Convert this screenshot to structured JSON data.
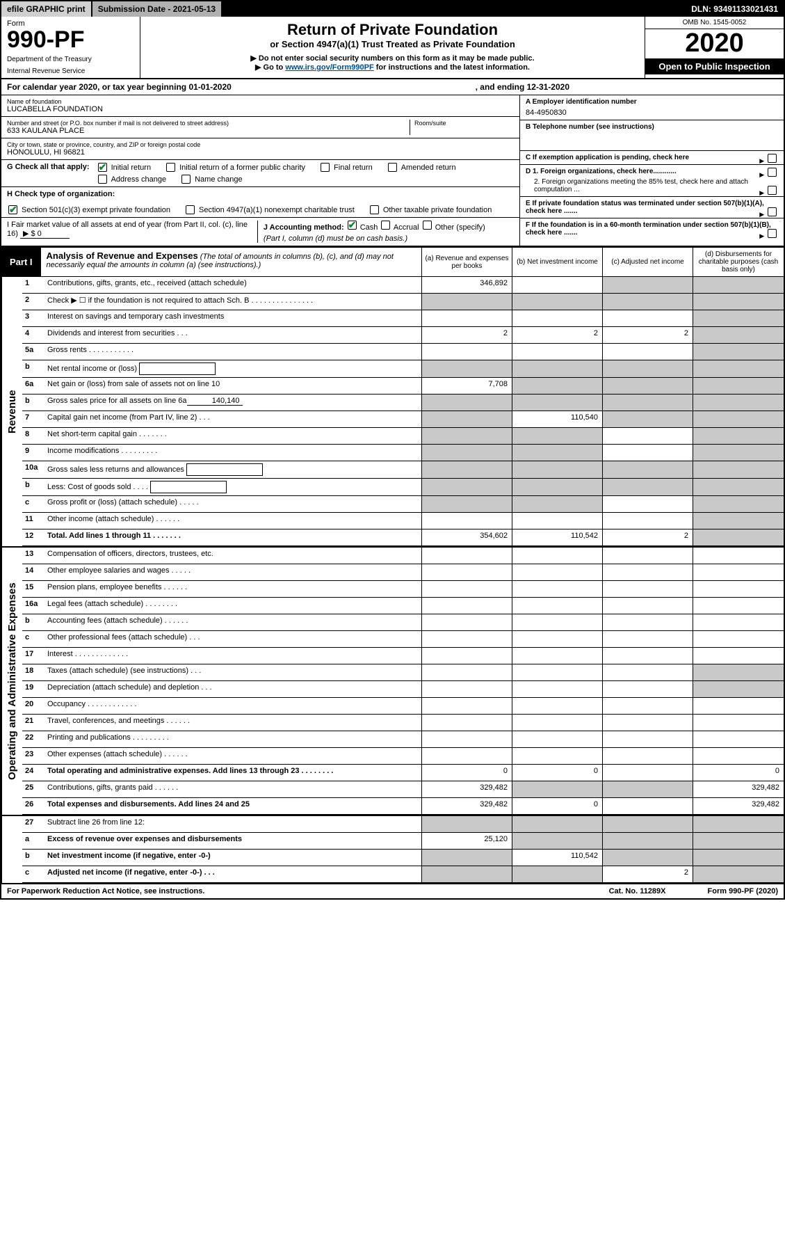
{
  "colors": {
    "black": "#000000",
    "white": "#ffffff",
    "grey_light": "#d0d0d0",
    "grey_mid": "#b0b0b0",
    "grey_cell": "#c8c8c8",
    "link": "#004b87",
    "check_green": "#1a7f37"
  },
  "topbar": {
    "efile": "efile GRAPHIC print",
    "subdate": "Submission Date - 2021-05-13",
    "dln": "DLN: 93491133021431"
  },
  "header": {
    "form": "Form",
    "formnum": "990-PF",
    "dept1": "Department of the Treasury",
    "dept2": "Internal Revenue Service",
    "title": "Return of Private Foundation",
    "sub1": "or Section 4947(a)(1) Trust Treated as Private Foundation",
    "sub2": "▶ Do not enter social security numbers on this form as it may be made public.",
    "sub3": "▶ Go to www.irs.gov/Form990PF for instructions and the latest information.",
    "link": "www.irs.gov/Form990PF",
    "omb": "OMB No. 1545-0052",
    "year": "2020",
    "open": "Open to Public Inspection"
  },
  "calrow": {
    "t1": "For calendar year 2020, or tax year beginning 01-01-2020",
    "t2": ", and ending 12-31-2020"
  },
  "entity": {
    "name_lbl": "Name of foundation",
    "name_val": "LUCABELLA FOUNDATION",
    "addr_lbl": "Number and street (or P.O. box number if mail is not delivered to street address)",
    "addr_val": "633 KAULANA PLACE",
    "room_lbl": "Room/suite",
    "city_lbl": "City or town, state or province, country, and ZIP or foreign postal code",
    "city_val": "HONOLULU, HI  96821",
    "a_lbl": "A Employer identification number",
    "a_val": "84-4950830",
    "b_lbl": "B Telephone number (see instructions)",
    "c_lbl": "C If exemption application is pending, check here",
    "d1": "D 1. Foreign organizations, check here............",
    "d2": "2. Foreign organizations meeting the 85% test, check here and attach computation ...",
    "e_lbl": "E  If private foundation status was terminated under section 507(b)(1)(A), check here .......",
    "f_lbl": "F  If the foundation is in a 60-month termination under section 507(b)(1)(B), check here .......",
    "g_lbl": "G Check all that apply:",
    "g_opts": [
      "Initial return",
      "Initial return of a former public charity",
      "Final return",
      "Amended return",
      "Address change",
      "Name change"
    ],
    "g_checked": [
      true,
      false,
      false,
      false,
      false,
      false
    ],
    "h_lbl": "H Check type of organization:",
    "h_opts": [
      "Section 501(c)(3) exempt private foundation",
      "Section 4947(a)(1) nonexempt charitable trust",
      "Other taxable private foundation"
    ],
    "h_checked": [
      true,
      false,
      false
    ],
    "i_lbl": "I Fair market value of all assets at end of year (from Part II, col. (c), line 16)",
    "i_val": "▶ $  0",
    "j_lbl": "J Accounting method:",
    "j_opts": [
      "Cash",
      "Accrual",
      "Other (specify)"
    ],
    "j_checked": [
      true,
      false,
      false
    ],
    "j_note": "(Part I, column (d) must be on cash basis.)"
  },
  "part1": {
    "tag": "Part I",
    "title": "Analysis of Revenue and Expenses",
    "title_sub": " (The total of amounts in columns (b), (c), and (d) may not necessarily equal the amounts in column (a) (see instructions).)",
    "col_a": "(a)  Revenue and expenses per books",
    "col_b": "(b)  Net investment income",
    "col_c": "(c)  Adjusted net income",
    "col_d": "(d)  Disbursements for charitable purposes (cash basis only)"
  },
  "sidelabels": {
    "rev": "Revenue",
    "exp": "Operating and Administrative Expenses"
  },
  "rows": [
    {
      "n": "1",
      "d": "Contributions, gifts, grants, etc., received (attach schedule)",
      "a": "346,892",
      "b": "",
      "c": "",
      "dd": "",
      "gb": false,
      "gc": true,
      "gd": true
    },
    {
      "n": "2",
      "d": "Check ▶ ☐ if the foundation is not required to attach Sch. B   .  .  .  .  .  .  .  .  .  .  .  .  .  .  .",
      "a": "",
      "b": "",
      "c": "",
      "dd": "",
      "ga": true,
      "gb": true,
      "gc": true,
      "gd": true
    },
    {
      "n": "3",
      "d": "Interest on savings and temporary cash investments",
      "a": "",
      "b": "",
      "c": "",
      "dd": "",
      "gd": true
    },
    {
      "n": "4",
      "d": "Dividends and interest from securities   .  .  .",
      "a": "2",
      "b": "2",
      "c": "2",
      "dd": "",
      "gd": true
    },
    {
      "n": "5a",
      "d": "Gross rents   .  .  .  .  .  .  .  .  .  .  .",
      "a": "",
      "b": "",
      "c": "",
      "dd": "",
      "gd": true
    },
    {
      "n": "b",
      "d": "Net rental income or (loss)",
      "a": "",
      "b": "",
      "c": "",
      "dd": "",
      "ga": true,
      "gb": true,
      "gc": true,
      "gd": true,
      "box": true
    },
    {
      "n": "6a",
      "d": "Net gain or (loss) from sale of assets not on line 10",
      "a": "7,708",
      "b": "",
      "c": "",
      "dd": "",
      "gb": true,
      "gc": true,
      "gd": true
    },
    {
      "n": "b",
      "d": "Gross sales price for all assets on line 6a",
      "a": "",
      "b": "",
      "c": "",
      "dd": "",
      "ga": true,
      "gb": true,
      "gc": true,
      "gd": true,
      "inline": "140,140"
    },
    {
      "n": "7",
      "d": "Capital gain net income (from Part IV, line 2)   .  .  .",
      "a": "",
      "b": "110,540",
      "c": "",
      "dd": "",
      "ga": true,
      "gc": true,
      "gd": true
    },
    {
      "n": "8",
      "d": "Net short-term capital gain   .  .  .  .  .  .  .",
      "a": "",
      "b": "",
      "c": "",
      "dd": "",
      "ga": true,
      "gb": true,
      "gd": true
    },
    {
      "n": "9",
      "d": "Income modifications  .  .  .  .  .  .  .  .  .",
      "a": "",
      "b": "",
      "c": "",
      "dd": "",
      "ga": true,
      "gb": true,
      "gd": true
    },
    {
      "n": "10a",
      "d": "Gross sales less returns and allowances",
      "a": "",
      "b": "",
      "c": "",
      "dd": "",
      "ga": true,
      "gb": true,
      "gc": true,
      "gd": true,
      "box": true
    },
    {
      "n": "b",
      "d": "Less: Cost of goods sold   .  .  .  .",
      "a": "",
      "b": "",
      "c": "",
      "dd": "",
      "ga": true,
      "gb": true,
      "gc": true,
      "gd": true,
      "box": true
    },
    {
      "n": "c",
      "d": "Gross profit or (loss) (attach schedule)   .  .  .  .  .",
      "a": "",
      "b": "",
      "c": "",
      "dd": "",
      "ga": true,
      "gb": true,
      "gd": true
    },
    {
      "n": "11",
      "d": "Other income (attach schedule)   .  .  .  .  .  .",
      "a": "",
      "b": "",
      "c": "",
      "dd": "",
      "gd": true
    },
    {
      "n": "12",
      "d": "Total. Add lines 1 through 11   .  .  .  .  .  .  .",
      "a": "354,602",
      "b": "110,542",
      "c": "2",
      "dd": "",
      "bold": true,
      "gd": true
    }
  ],
  "rows2": [
    {
      "n": "13",
      "d": "Compensation of officers, directors, trustees, etc.",
      "a": "",
      "b": "",
      "c": "",
      "dd": ""
    },
    {
      "n": "14",
      "d": "Other employee salaries and wages   .  .  .  .  .",
      "a": "",
      "b": "",
      "c": "",
      "dd": ""
    },
    {
      "n": "15",
      "d": "Pension plans, employee benefits   .  .  .  .  .  .",
      "a": "",
      "b": "",
      "c": "",
      "dd": ""
    },
    {
      "n": "16a",
      "d": "Legal fees (attach schedule)  .  .  .  .  .  .  .  .",
      "a": "",
      "b": "",
      "c": "",
      "dd": ""
    },
    {
      "n": "b",
      "d": "Accounting fees (attach schedule)  .  .  .  .  .  .",
      "a": "",
      "b": "",
      "c": "",
      "dd": ""
    },
    {
      "n": "c",
      "d": "Other professional fees (attach schedule)   .  .  .",
      "a": "",
      "b": "",
      "c": "",
      "dd": ""
    },
    {
      "n": "17",
      "d": "Interest  .  .  .  .  .  .  .  .  .  .  .  .  .",
      "a": "",
      "b": "",
      "c": "",
      "dd": ""
    },
    {
      "n": "18",
      "d": "Taxes (attach schedule) (see instructions)   .  .  .",
      "a": "",
      "b": "",
      "c": "",
      "dd": "",
      "gd": true
    },
    {
      "n": "19",
      "d": "Depreciation (attach schedule) and depletion   .  .  .",
      "a": "",
      "b": "",
      "c": "",
      "dd": "",
      "gd": true
    },
    {
      "n": "20",
      "d": "Occupancy  .  .  .  .  .  .  .  .  .  .  .  .",
      "a": "",
      "b": "",
      "c": "",
      "dd": ""
    },
    {
      "n": "21",
      "d": "Travel, conferences, and meetings  .  .  .  .  .  .",
      "a": "",
      "b": "",
      "c": "",
      "dd": ""
    },
    {
      "n": "22",
      "d": "Printing and publications  .  .  .  .  .  .  .  .  .",
      "a": "",
      "b": "",
      "c": "",
      "dd": ""
    },
    {
      "n": "23",
      "d": "Other expenses (attach schedule)  .  .  .  .  .  .",
      "a": "",
      "b": "",
      "c": "",
      "dd": ""
    },
    {
      "n": "24",
      "d": "Total operating and administrative expenses. Add lines 13 through 23   .  .  .  .  .  .  .  .",
      "a": "0",
      "b": "0",
      "c": "",
      "dd": "0",
      "bold": true
    },
    {
      "n": "25",
      "d": "Contributions, gifts, grants paid   .  .  .  .  .  .",
      "a": "329,482",
      "b": "",
      "c": "",
      "dd": "329,482",
      "gb": true,
      "gc": true
    },
    {
      "n": "26",
      "d": "Total expenses and disbursements. Add lines 24 and 25",
      "a": "329,482",
      "b": "0",
      "c": "",
      "dd": "329,482",
      "bold": true
    }
  ],
  "rows3": [
    {
      "n": "27",
      "d": "Subtract line 26 from line 12:",
      "a": "",
      "b": "",
      "c": "",
      "dd": "",
      "ga": true,
      "gb": true,
      "gc": true,
      "gd": true
    },
    {
      "n": "a",
      "d": "Excess of revenue over expenses and disbursements",
      "a": "25,120",
      "b": "",
      "c": "",
      "dd": "",
      "bold": true,
      "gb": true,
      "gc": true,
      "gd": true
    },
    {
      "n": "b",
      "d": "Net investment income (if negative, enter -0-)",
      "a": "",
      "b": "110,542",
      "c": "",
      "dd": "",
      "bold": true,
      "ga": true,
      "gc": true,
      "gd": true
    },
    {
      "n": "c",
      "d": "Adjusted net income (if negative, enter -0-)   .  .  .",
      "a": "",
      "b": "",
      "c": "2",
      "dd": "",
      "bold": true,
      "ga": true,
      "gb": true,
      "gd": true
    }
  ],
  "footer": {
    "f1": "For Paperwork Reduction Act Notice, see instructions.",
    "f2": "Cat. No. 11289X",
    "f3": "Form 990-PF (2020)"
  }
}
